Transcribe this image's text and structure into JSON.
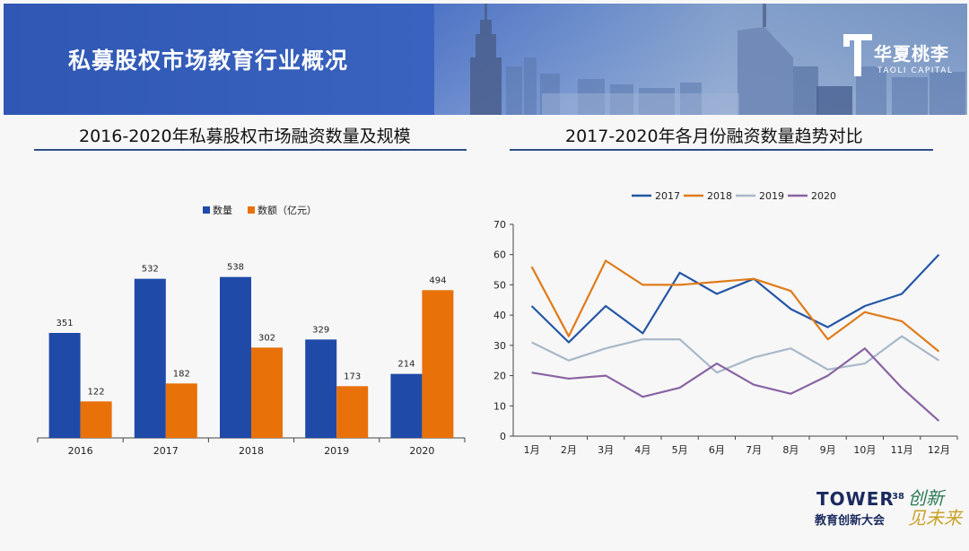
{
  "slide": {
    "title": "私募股权市场教育行业概况",
    "logo": {
      "name": "华夏桃李",
      "sub": "TAOLI CAPITAL"
    },
    "footer": {
      "brand": "TOWER",
      "brand_sup": "38",
      "conference": "教育创新大会",
      "slogan_line1": "创新",
      "slogan_line2": "见未来"
    }
  },
  "left_panel": {
    "title": "2016-2020年私募股权市场融资数量及规模"
  },
  "right_panel": {
    "title": "2017-2020年各月份融资数量趋势对比"
  },
  "colors": {
    "blue": "#1f4aa8",
    "orange": "#e8710a",
    "c2017": "#2456a6",
    "c2018": "#e07b1a",
    "c2019": "#a9b8c9",
    "c2020": "#8a63a3",
    "banner": "#3a63c0"
  },
  "chart_data": [
    {
      "type": "bar",
      "categories": [
        "2016",
        "2017",
        "2018",
        "2019",
        "2020"
      ],
      "series": [
        {
          "name": "数量",
          "values": [
            351,
            532,
            538,
            329,
            214
          ]
        },
        {
          "name": "数额（亿元）",
          "values": [
            122,
            182,
            302,
            173,
            494
          ]
        }
      ],
      "legend": "top-center",
      "ylim": [
        0,
        600
      ]
    },
    {
      "type": "line",
      "categories": [
        "1月",
        "2月",
        "3月",
        "4月",
        "5月",
        "6月",
        "7月",
        "8月",
        "9月",
        "10月",
        "11月",
        "12月"
      ],
      "series": [
        {
          "name": "2017",
          "values": [
            43,
            31,
            43,
            34,
            54,
            47,
            52,
            42,
            36,
            43,
            47,
            60
          ]
        },
        {
          "name": "2018",
          "values": [
            56,
            33,
            58,
            50,
            50,
            51,
            52,
            48,
            32,
            41,
            38,
            28
          ]
        },
        {
          "name": "2019",
          "values": [
            31,
            25,
            29,
            32,
            32,
            21,
            26,
            29,
            22,
            24,
            33,
            25
          ]
        },
        {
          "name": "2020",
          "values": [
            21,
            19,
            20,
            13,
            16,
            24,
            17,
            14,
            20,
            29,
            16,
            5
          ]
        }
      ],
      "yticks": [
        "0",
        "10",
        "20",
        "30",
        "40",
        "50",
        "60",
        "70"
      ],
      "ylim": [
        0,
        70
      ],
      "legend": "top-center",
      "grid": false
    }
  ]
}
